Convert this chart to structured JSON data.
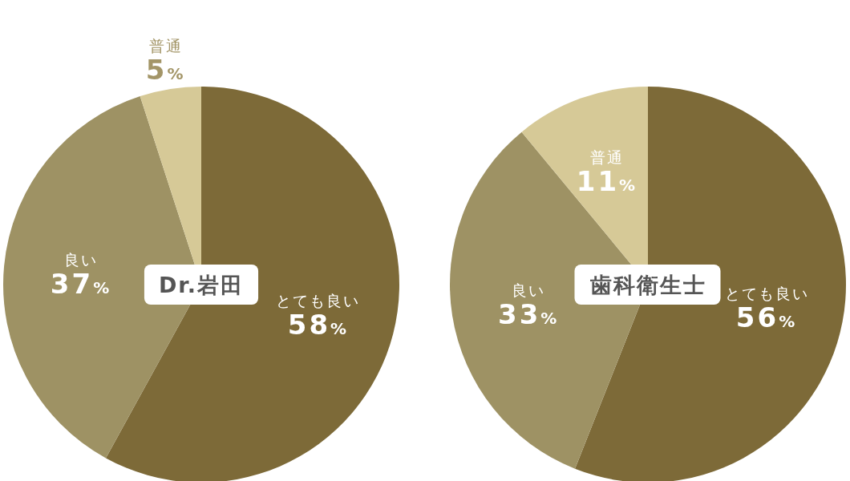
{
  "chart_data": [
    {
      "type": "pie",
      "title": "Dr.岩田",
      "categories": [
        "とても良い",
        "良い",
        "普通"
      ],
      "values": [
        58,
        37,
        5
      ],
      "colors": [
        "#7d6a38",
        "#9e9264",
        "#d6c997"
      ],
      "value_labels": [
        "58%",
        "37%",
        "5%"
      ]
    },
    {
      "type": "pie",
      "title": "歯科衛生士",
      "categories": [
        "とても良い",
        "良い",
        "普通"
      ],
      "values": [
        56,
        33,
        11
      ],
      "colors": [
        "#7d6a38",
        "#9e9264",
        "#d6c997"
      ],
      "value_labels": [
        "56%",
        "33%",
        "11%"
      ]
    }
  ]
}
